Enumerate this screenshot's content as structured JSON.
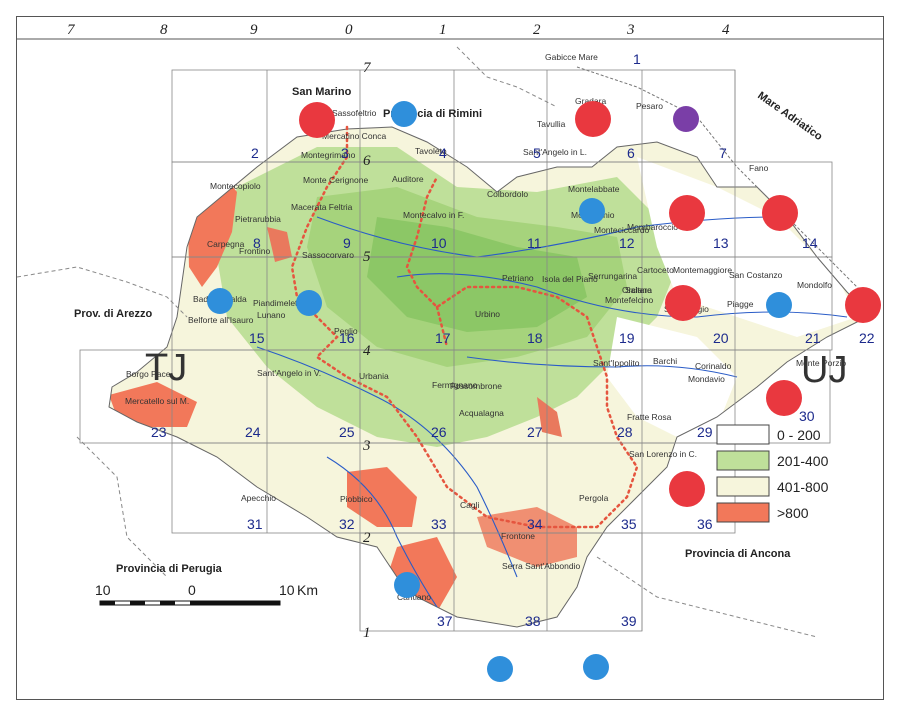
{
  "coords_top": [
    "7",
    "8",
    "9",
    "0",
    "1",
    "2",
    "3",
    "4"
  ],
  "coords_side": [
    "7",
    "6",
    "5",
    "4",
    "3",
    "2",
    "1"
  ],
  "sheets": [
    "1",
    "2",
    "3",
    "4",
    "5",
    "6",
    "7",
    "8",
    "9",
    "10",
    "11",
    "12",
    "13",
    "14",
    "15",
    "16",
    "17",
    "18",
    "19",
    "20",
    "21",
    "22",
    "23",
    "24",
    "25",
    "26",
    "27",
    "28",
    "29",
    "30",
    "31",
    "32",
    "33",
    "34",
    "35",
    "36",
    "37",
    "38",
    "39"
  ],
  "zones": [
    "TJ",
    "UJ"
  ],
  "regions": {
    "san_marino": "San Marino",
    "rimini": "Provincia di Rimini",
    "adriatico": "Mare Adriatico",
    "arezzo": "Prov. di Arezzo",
    "perugia": "Provincia di Perugia",
    "ancona": "Provincia di Ancona"
  },
  "towns": [
    "Gabicce Mare",
    "Gradara",
    "Tavullia",
    "Sassofeltrio",
    "Mercatino Conca",
    "Montegrimano",
    "Tavoleto",
    "Monte Cerignone",
    "Auditore",
    "Montecopiolo",
    "Macerata Feltria",
    "Pietrarubbia",
    "Carpegna",
    "Frontino",
    "Sassocorvaro",
    "Montecalvo in F.",
    "Colbordolo",
    "Sant'Angelo in L.",
    "Montelabbate",
    "Montecchio",
    "Mombaroccio",
    "Fano",
    "Cartoceto",
    "Saltara",
    "San Costanzo",
    "Mondolfo",
    "Petriano",
    "Isola del Piano",
    "Serrungarina",
    "Montefelcino",
    "San Giorgio",
    "Piagge",
    "Orciano",
    "Monte Porzio",
    "Barchi",
    "Mondavio",
    "Badia Tedalda",
    "Piandimeleto",
    "Belforte all'Isauro",
    "Borgo Pace",
    "Sant'Angelo in V.",
    "Mercatello sul M.",
    "Peglio",
    "Urbino",
    "Urbania",
    "Fermignano",
    "Fossombrone",
    "Sant'Ippolito",
    "Acqualagna",
    "Fratte Rosa",
    "San Lorenzo in C.",
    "Apecchio",
    "Piobbico",
    "Cagli",
    "Pergola",
    "Frontone",
    "Serra Sant'Abbondio",
    "Cantiano",
    "Pesaro",
    "Montemaggiore",
    "Corinaldo",
    "Monteciccardo",
    "Lunano"
  ],
  "legend": {
    "items": [
      {
        "label": "0 - 200",
        "color": "#ffffff"
      },
      {
        "label": "201-400",
        "color": "#bfe09a"
      },
      {
        "label": "401-800",
        "color": "#f6f5dc"
      },
      {
        "label": ">800",
        "color": "#f2785a"
      }
    ]
  },
  "scale": {
    "left": "10",
    "mid": "0",
    "right": "10",
    "unit": "Km"
  },
  "markers": {
    "red": "#e9383f",
    "blue": "#2f8fdb",
    "purple": "#7a3ea7"
  },
  "boundary_color": "#e5553f",
  "terrain_colors": {
    "low": "#bfe09a",
    "mid": "#f6f5dc",
    "high": "#f2785a",
    "green_dark": "#7bbf56"
  }
}
